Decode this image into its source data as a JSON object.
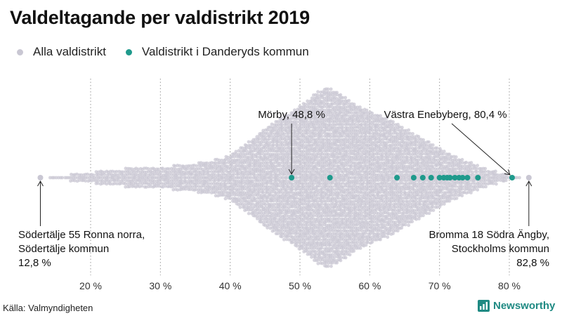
{
  "title": "Valdeltagande per valdistrikt 2019",
  "legend": [
    {
      "label": "Alla valdistrikt",
      "color": "#c9c7d3"
    },
    {
      "label": "Valdistrikt i Danderyds kommun",
      "color": "#1f9a8c"
    }
  ],
  "source": "Källa: Valmyndigheten",
  "brand": {
    "name": "Newsworthy",
    "color": "#1f8a83"
  },
  "chart_data": {
    "type": "scatter",
    "subtype": "beeswarm",
    "xlabel": "",
    "ylabel": "",
    "x_range": [
      10,
      85
    ],
    "x_ticks": [
      20,
      30,
      40,
      50,
      60,
      70,
      80
    ],
    "x_tick_labels": [
      "20 %",
      "30 %",
      "40 %",
      "50 %",
      "60 %",
      "70 %",
      "80 %"
    ],
    "grid": "vertical dotted",
    "distribution": {
      "name": "Alla valdistrikt",
      "note": "approximate density of all districts by turnout (%)",
      "x": [
        12,
        15,
        18,
        20,
        22,
        25,
        28,
        30,
        33,
        36,
        39,
        41,
        43,
        45,
        47,
        49,
        51,
        52,
        53,
        54,
        55,
        56,
        57,
        58,
        59,
        60,
        62,
        64,
        66,
        68,
        70,
        72,
        74,
        76,
        78,
        80,
        82,
        84
      ],
      "relative_density": [
        0.01,
        0.02,
        0.04,
        0.06,
        0.08,
        0.1,
        0.11,
        0.12,
        0.14,
        0.17,
        0.22,
        0.3,
        0.42,
        0.55,
        0.65,
        0.75,
        0.85,
        0.93,
        0.98,
        1.0,
        0.97,
        0.92,
        0.86,
        0.82,
        0.78,
        0.74,
        0.68,
        0.6,
        0.5,
        0.42,
        0.33,
        0.25,
        0.18,
        0.12,
        0.07,
        0.03,
        0.02,
        0.01
      ]
    },
    "series": [
      {
        "name": "Valdistrikt i Danderyds kommun",
        "color": "#1f9a8c",
        "x": [
          48.8,
          54.3,
          63.9,
          66.3,
          67.6,
          68.8,
          70.0,
          70.6,
          71.1,
          71.5,
          72.2,
          72.8,
          73.3,
          74.0,
          75.5,
          80.4
        ]
      }
    ],
    "extremes": [
      {
        "name": "Södertälje 55 Ronna norra",
        "x": 12.8,
        "color": "#c9c7d3"
      },
      {
        "name": "Bromma 18 Södra Ängby",
        "x": 82.8,
        "color": "#c9c7d3"
      }
    ],
    "annotations": [
      {
        "x": 48.8,
        "lines": [
          "Mörby, 48,8 %"
        ],
        "position": "above"
      },
      {
        "x": 80.4,
        "lines": [
          "Västra Enebyberg, 80,4 %"
        ],
        "position": "above"
      },
      {
        "x": 12.8,
        "lines": [
          "Södertälje 55 Ronna norra,",
          "Södertälje kommun",
          "12,8 %"
        ],
        "position": "below-left"
      },
      {
        "x": 82.8,
        "lines": [
          "Bromma 18 Södra Ängby,",
          "Stockholms kommun",
          "82,8 %"
        ],
        "position": "below-right"
      }
    ]
  }
}
